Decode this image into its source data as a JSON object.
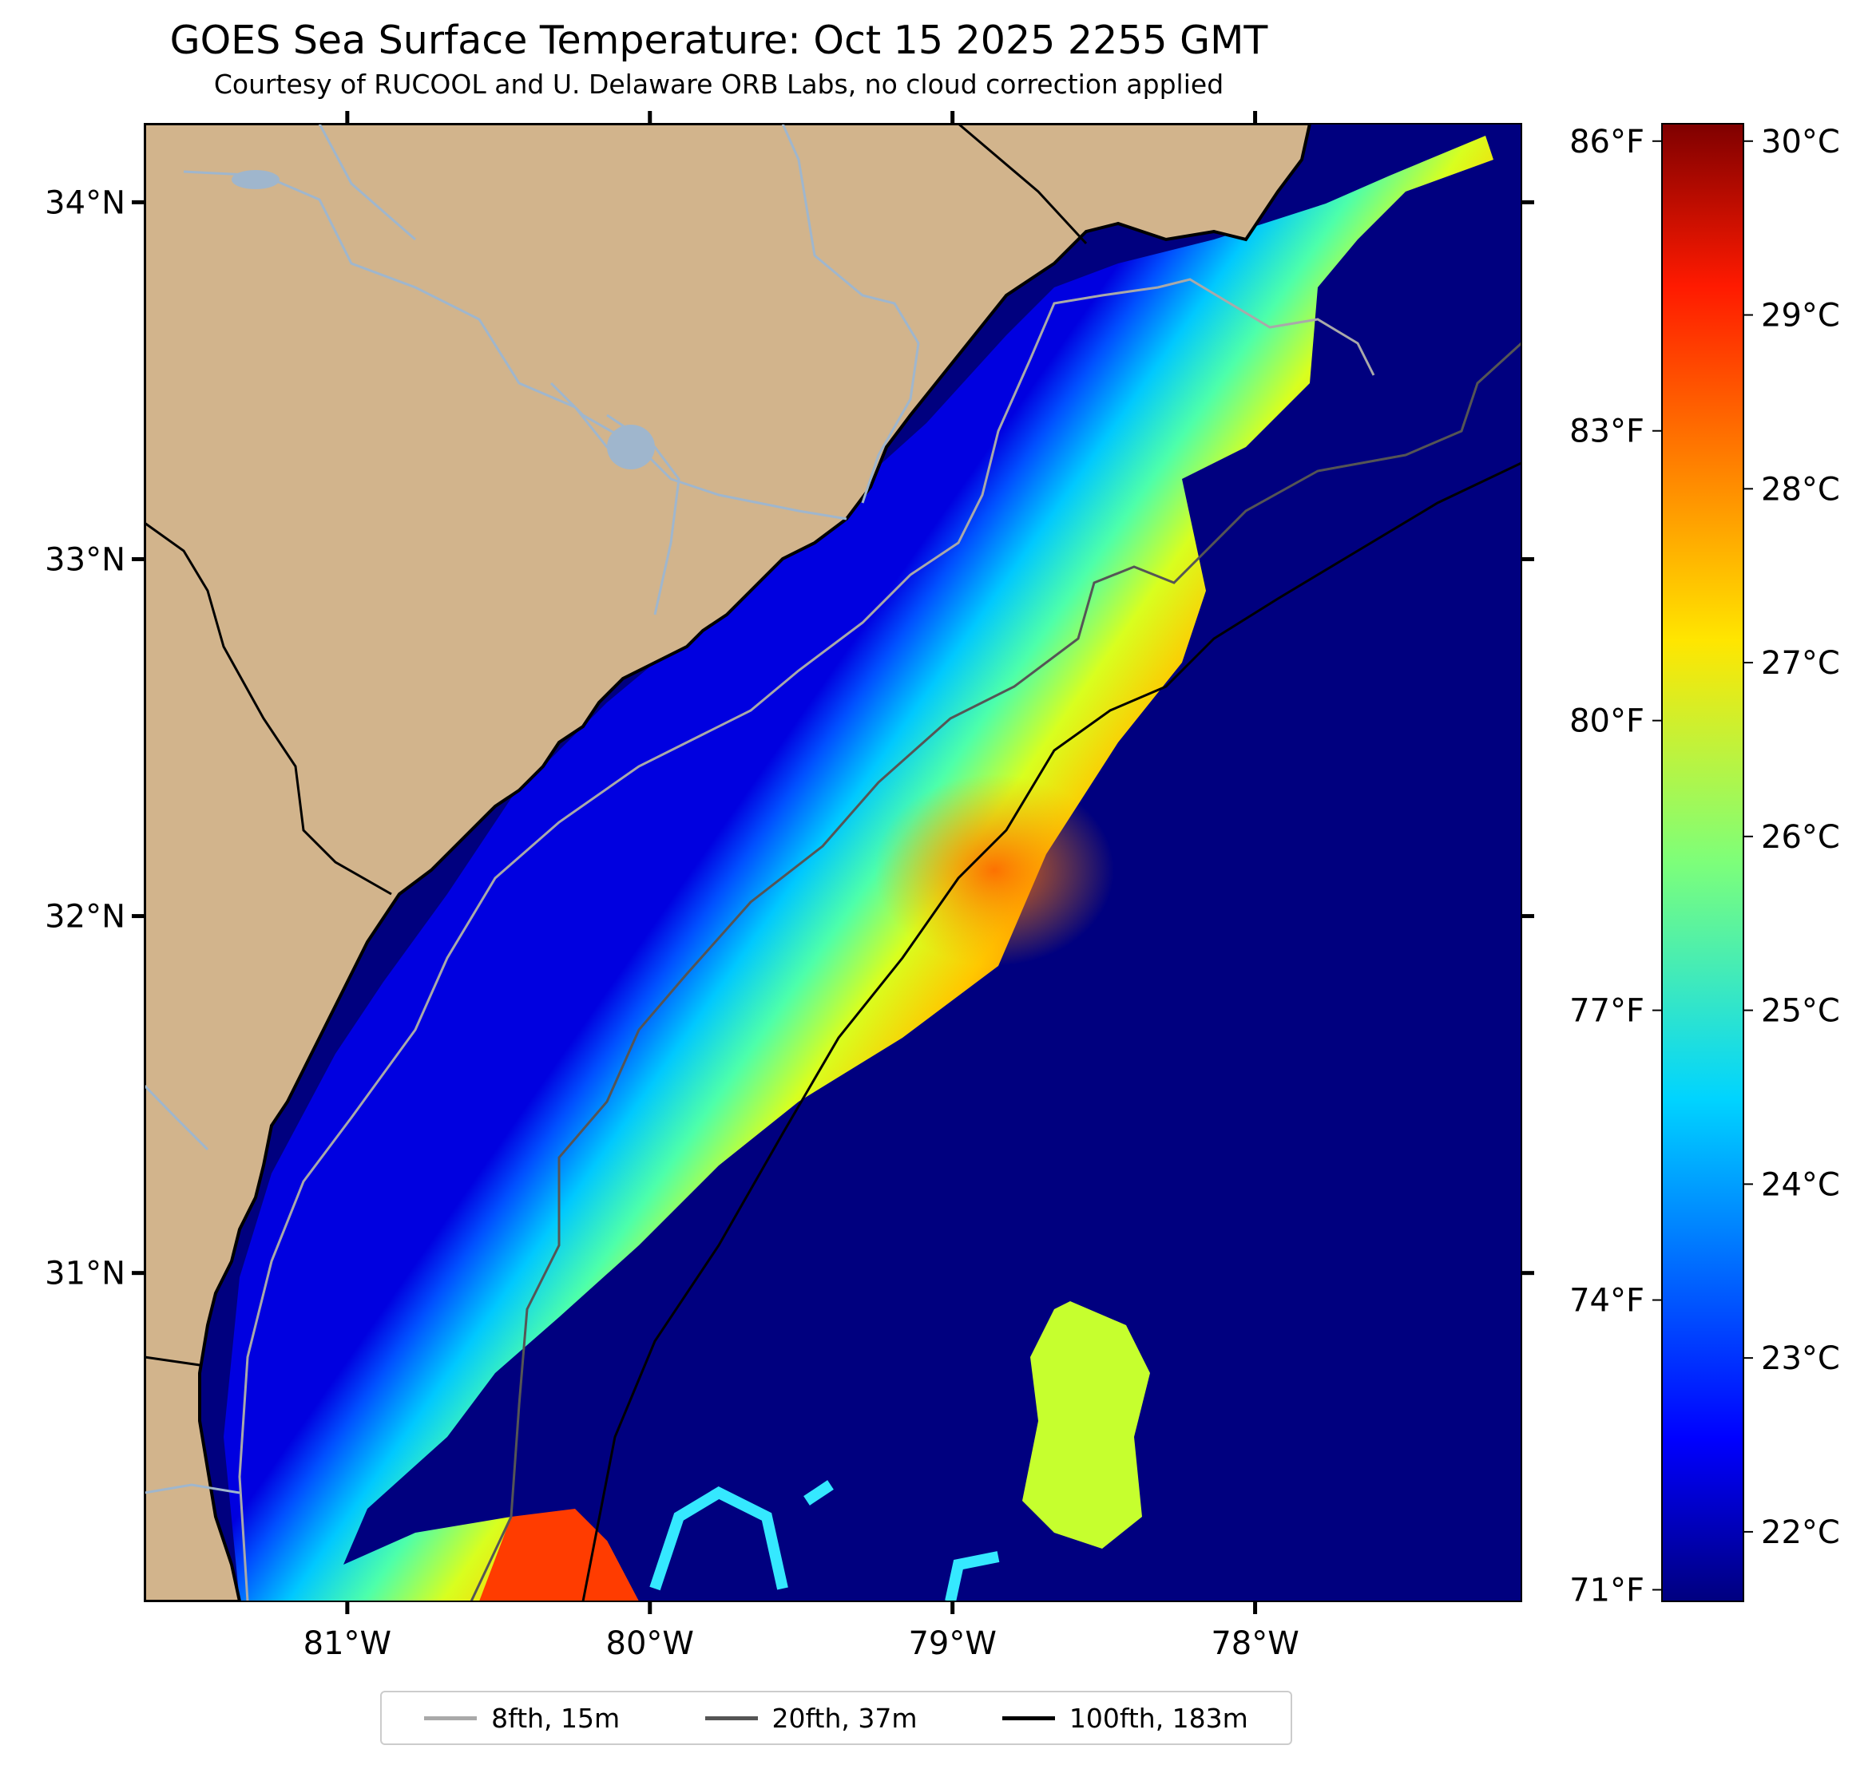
{
  "title": "GOES Sea Surface Temperature: Oct 15 2025 2255 GMT",
  "subtitle": "Courtesy of RUCOOL and U. Delaware ORB Labs, no cloud correction applied",
  "map": {
    "lat_ticks": [
      {
        "lat": 34,
        "label": "34°N"
      },
      {
        "lat": 33,
        "label": "33°N"
      },
      {
        "lat": 32,
        "label": "32°N"
      },
      {
        "lat": 31,
        "label": "31°N"
      }
    ],
    "lon_ticks": [
      {
        "lon": -81,
        "label": "81°W"
      },
      {
        "lon": -80,
        "label": "80°W"
      },
      {
        "lon": -79,
        "label": "79°W"
      },
      {
        "lon": -78,
        "label": "78°W"
      }
    ],
    "lon_range": [
      -81.67,
      -77.12
    ],
    "lat_range": [
      30.08,
      34.22
    ],
    "colors": {
      "land": "#d2b48c",
      "water_cold": "#00007f",
      "coast": "#000000",
      "river": "#9fb6cd"
    }
  },
  "colorbar": {
    "celsius_range": [
      21.6,
      30.1
    ],
    "celsius_ticks": [
      {
        "value": 22,
        "label": "22°C"
      },
      {
        "value": 23,
        "label": "23°C"
      },
      {
        "value": 24,
        "label": "24°C"
      },
      {
        "value": 25,
        "label": "25°C"
      },
      {
        "value": 26,
        "label": "26°C"
      },
      {
        "value": 27,
        "label": "27°C"
      },
      {
        "value": 28,
        "label": "28°C"
      },
      {
        "value": 29,
        "label": "29°C"
      },
      {
        "value": 30,
        "label": "30°C"
      }
    ],
    "fahrenheit_ticks": [
      {
        "value": 71,
        "label": "71°F"
      },
      {
        "value": 74,
        "label": "74°F"
      },
      {
        "value": 77,
        "label": "77°F"
      },
      {
        "value": 80,
        "label": "80°F"
      },
      {
        "value": 83,
        "label": "83°F"
      },
      {
        "value": 86,
        "label": "86°F"
      }
    ],
    "colormap": "jet"
  },
  "legend": [
    {
      "label": "8fth, 15m",
      "color": "#a9a9a9"
    },
    {
      "label": "20fth, 37m",
      "color": "#555555"
    },
    {
      "label": "100fth, 183m",
      "color": "#000000"
    }
  ]
}
